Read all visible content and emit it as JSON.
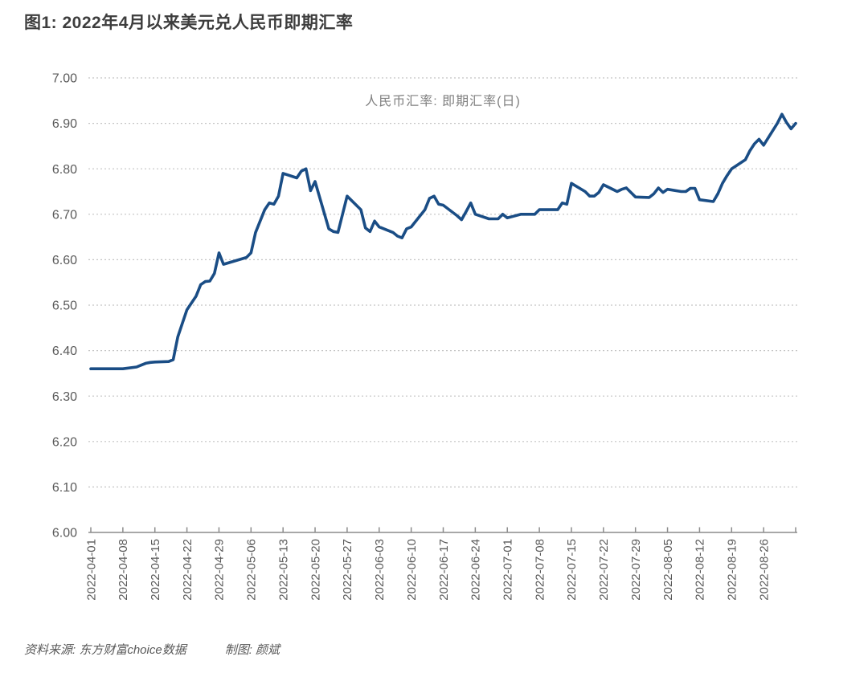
{
  "page": {
    "title": "图1: 2022年4月以来美元兑人民币即期汇率",
    "source_label": "资料来源: 东方财富choice数据",
    "credit_label": "制图: 颜斌"
  },
  "chart_data": {
    "type": "line",
    "title": "图1: 2022年4月以来美元兑人民币即期汇率",
    "series_label": "人民币汇率: 即期汇率(日)",
    "legend_position": "top-center-inside",
    "grid": "horizontal-dotted",
    "line_color": "#1a4d85",
    "grid_color": "#c3c3c3",
    "axis_color": "#8c8c8c",
    "tick_label_color": "#595959",
    "ylim": [
      6.0,
      7.0
    ],
    "y_ticks": [
      "7.00",
      "6.90",
      "6.80",
      "6.70",
      "6.60",
      "6.50",
      "6.40",
      "6.30",
      "6.20",
      "6.10",
      "6.00"
    ],
    "x_ticks": [
      "2022-04-01",
      "2022-04-08",
      "2022-04-15",
      "2022-04-22",
      "2022-04-29",
      "2022-05-06",
      "2022-05-13",
      "2022-05-20",
      "2022-05-27",
      "2022-06-03",
      "2022-06-10",
      "2022-06-17",
      "2022-06-24",
      "2022-07-01",
      "2022-07-08",
      "2022-07-15",
      "2022-07-22",
      "2022-07-29",
      "2022-08-05",
      "2022-08-12",
      "2022-08-19",
      "2022-08-26"
    ],
    "points": [
      [
        "2022-04-01",
        6.36
      ],
      [
        "2022-04-06",
        6.36
      ],
      [
        "2022-04-07",
        6.36
      ],
      [
        "2022-04-08",
        6.36
      ],
      [
        "2022-04-11",
        6.364
      ],
      [
        "2022-04-12",
        6.368
      ],
      [
        "2022-04-13",
        6.372
      ],
      [
        "2022-04-14",
        6.374
      ],
      [
        "2022-04-15",
        6.375
      ],
      [
        "2022-04-18",
        6.376
      ],
      [
        "2022-04-19",
        6.38
      ],
      [
        "2022-04-20",
        6.43
      ],
      [
        "2022-04-21",
        6.46
      ],
      [
        "2022-04-22",
        6.49
      ],
      [
        "2022-04-24",
        6.52
      ],
      [
        "2022-04-25",
        6.545
      ],
      [
        "2022-04-26",
        6.552
      ],
      [
        "2022-04-27",
        6.553
      ],
      [
        "2022-04-28",
        6.57
      ],
      [
        "2022-04-29",
        6.615
      ],
      [
        "2022-04-30",
        6.59
      ],
      [
        "2022-05-05",
        6.605
      ],
      [
        "2022-05-06",
        6.615
      ],
      [
        "2022-05-07",
        6.66
      ],
      [
        "2022-05-09",
        6.71
      ],
      [
        "2022-05-10",
        6.725
      ],
      [
        "2022-05-11",
        6.722
      ],
      [
        "2022-05-12",
        6.74
      ],
      [
        "2022-05-13",
        6.79
      ],
      [
        "2022-05-16",
        6.78
      ],
      [
        "2022-05-17",
        6.795
      ],
      [
        "2022-05-18",
        6.8
      ],
      [
        "2022-05-19",
        6.752
      ],
      [
        "2022-05-20",
        6.772
      ],
      [
        "2022-05-23",
        6.668
      ],
      [
        "2022-05-24",
        6.662
      ],
      [
        "2022-05-25",
        6.66
      ],
      [
        "2022-05-26",
        6.7
      ],
      [
        "2022-05-27",
        6.74
      ],
      [
        "2022-05-30",
        6.71
      ],
      [
        "2022-05-31",
        6.67
      ],
      [
        "2022-06-01",
        6.662
      ],
      [
        "2022-06-02",
        6.685
      ],
      [
        "2022-06-03",
        6.672
      ],
      [
        "2022-06-06",
        6.66
      ],
      [
        "2022-06-07",
        6.652
      ],
      [
        "2022-06-08",
        6.648
      ],
      [
        "2022-06-09",
        6.668
      ],
      [
        "2022-06-10",
        6.672
      ],
      [
        "2022-06-13",
        6.71
      ],
      [
        "2022-06-14",
        6.735
      ],
      [
        "2022-06-15",
        6.74
      ],
      [
        "2022-06-16",
        6.722
      ],
      [
        "2022-06-17",
        6.72
      ],
      [
        "2022-06-20",
        6.697
      ],
      [
        "2022-06-21",
        6.688
      ],
      [
        "2022-06-22",
        6.706
      ],
      [
        "2022-06-23",
        6.725
      ],
      [
        "2022-06-24",
        6.7
      ],
      [
        "2022-06-27",
        6.69
      ],
      [
        "2022-06-28",
        6.69
      ],
      [
        "2022-06-29",
        6.69
      ],
      [
        "2022-06-30",
        6.7
      ],
      [
        "2022-07-01",
        6.692
      ],
      [
        "2022-07-04",
        6.7
      ],
      [
        "2022-07-05",
        6.7
      ],
      [
        "2022-07-06",
        6.7
      ],
      [
        "2022-07-07",
        6.7
      ],
      [
        "2022-07-08",
        6.71
      ],
      [
        "2022-07-11",
        6.71
      ],
      [
        "2022-07-12",
        6.71
      ],
      [
        "2022-07-13",
        6.725
      ],
      [
        "2022-07-14",
        6.722
      ],
      [
        "2022-07-15",
        6.768
      ],
      [
        "2022-07-18",
        6.75
      ],
      [
        "2022-07-19",
        6.74
      ],
      [
        "2022-07-20",
        6.74
      ],
      [
        "2022-07-21",
        6.748
      ],
      [
        "2022-07-22",
        6.765
      ],
      [
        "2022-07-25",
        6.75
      ],
      [
        "2022-07-26",
        6.755
      ],
      [
        "2022-07-27",
        6.758
      ],
      [
        "2022-07-28",
        6.748
      ],
      [
        "2022-07-29",
        6.738
      ],
      [
        "2022-08-01",
        6.737
      ],
      [
        "2022-08-02",
        6.745
      ],
      [
        "2022-08-03",
        6.758
      ],
      [
        "2022-08-04",
        6.748
      ],
      [
        "2022-08-05",
        6.755
      ],
      [
        "2022-08-08",
        6.75
      ],
      [
        "2022-08-09",
        6.75
      ],
      [
        "2022-08-10",
        6.757
      ],
      [
        "2022-08-11",
        6.757
      ],
      [
        "2022-08-12",
        6.732
      ],
      [
        "2022-08-15",
        6.728
      ],
      [
        "2022-08-16",
        6.745
      ],
      [
        "2022-08-17",
        6.768
      ],
      [
        "2022-08-18",
        6.785
      ],
      [
        "2022-08-19",
        6.8
      ],
      [
        "2022-08-22",
        6.82
      ],
      [
        "2022-08-23",
        6.84
      ],
      [
        "2022-08-24",
        6.855
      ],
      [
        "2022-08-25",
        6.865
      ],
      [
        "2022-08-26",
        6.852
      ],
      [
        "2022-08-29",
        6.9
      ],
      [
        "2022-08-30",
        6.92
      ],
      [
        "2022-08-31",
        6.902
      ],
      [
        "2022-09-01",
        6.888
      ],
      [
        "2022-09-02",
        6.9
      ]
    ]
  }
}
